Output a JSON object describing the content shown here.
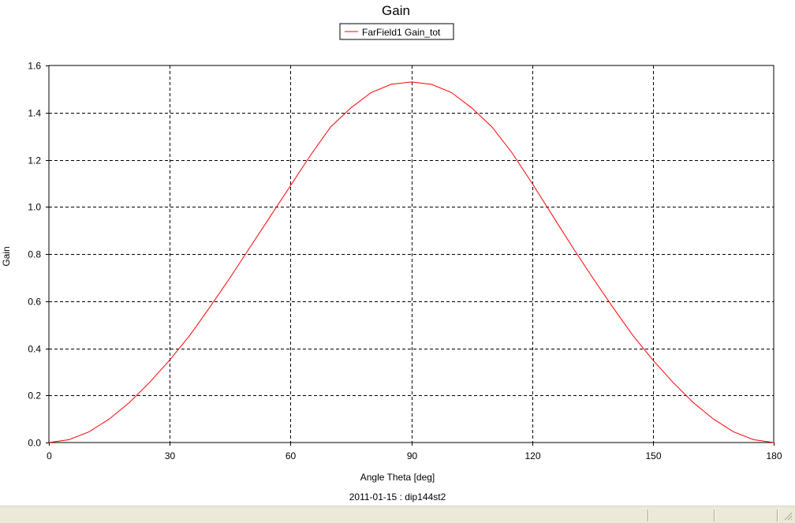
{
  "chart_data": {
    "type": "line",
    "title": "Gain",
    "xlabel": "Angle Theta [deg]",
    "ylabel": "Gain",
    "footer": "2011-01-15 : dip144st2",
    "xlim": [
      0,
      180
    ],
    "ylim": [
      0,
      1.6
    ],
    "xticks": [
      0,
      30,
      60,
      90,
      120,
      150,
      180
    ],
    "yticks": [
      0.0,
      0.2,
      0.4,
      0.6,
      0.8,
      1.0,
      1.2,
      1.4,
      1.6
    ],
    "ytick_labels": [
      "0.0",
      "0.2",
      "0.4",
      "0.6",
      "0.8",
      "1.0",
      "1.2",
      "1.4",
      "1.6"
    ],
    "grid": true,
    "legend_position": "top-center",
    "series": [
      {
        "name": "FarField1 Gain_tot",
        "color": "#ff0000",
        "x": [
          0,
          5,
          10,
          15,
          20,
          25,
          30,
          35,
          40,
          45,
          50,
          55,
          60,
          65,
          70,
          75,
          80,
          85,
          90,
          95,
          100,
          105,
          110,
          115,
          120,
          125,
          130,
          135,
          140,
          145,
          150,
          155,
          160,
          165,
          170,
          175,
          180
        ],
        "y": [
          0.0,
          0.012,
          0.046,
          0.1,
          0.17,
          0.255,
          0.35,
          0.455,
          0.575,
          0.7,
          0.83,
          0.96,
          1.09,
          1.22,
          1.34,
          1.42,
          1.485,
          1.52,
          1.53,
          1.52,
          1.485,
          1.42,
          1.34,
          1.23,
          1.1,
          0.965,
          0.83,
          0.7,
          0.575,
          0.455,
          0.35,
          0.255,
          0.17,
          0.1,
          0.046,
          0.012,
          0.0
        ]
      }
    ]
  }
}
